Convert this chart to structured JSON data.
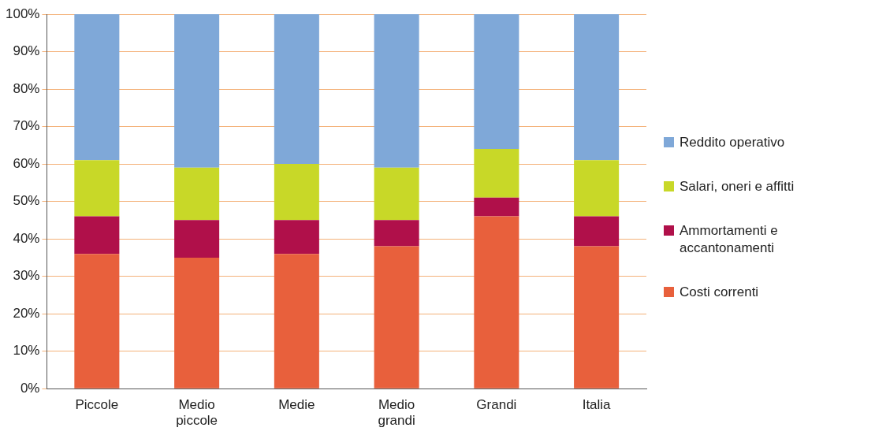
{
  "chart_data": {
    "type": "bar",
    "stacked": true,
    "categories": [
      "Piccole",
      "Medio piccole",
      "Medie",
      "Medio grandi",
      "Grandi",
      "Italia"
    ],
    "series": [
      {
        "name": "Costi correnti",
        "color": "#e8603c",
        "values": [
          36,
          35,
          36,
          38,
          46,
          38
        ]
      },
      {
        "name": "Ammortamenti e accantonamenti",
        "color": "#b0104a",
        "values": [
          10,
          10,
          9,
          7,
          5,
          8
        ]
      },
      {
        "name": "Salari, oneri e affitti",
        "color": "#c8d828",
        "values": [
          15,
          14,
          15,
          14,
          13,
          15
        ]
      },
      {
        "name": "Reddito operativo",
        "color": "#7fa8d8",
        "values": [
          39,
          41,
          40,
          41,
          36,
          39
        ]
      }
    ],
    "ylim": [
      0,
      100
    ],
    "yticks": [
      {
        "value": 0,
        "label": "0%"
      },
      {
        "value": 10,
        "label": "10%"
      },
      {
        "value": 20,
        "label": "20%"
      },
      {
        "value": 30,
        "label": "30%"
      },
      {
        "value": 40,
        "label": "40%"
      },
      {
        "value": 50,
        "label": "50%"
      },
      {
        "value": 60,
        "label": "60%"
      },
      {
        "value": 70,
        "label": "70%"
      },
      {
        "value": 80,
        "label": "80%"
      },
      {
        "value": 90,
        "label": "90%"
      },
      {
        "value": 100,
        "label": "100%"
      }
    ],
    "grid": "y",
    "legend": "right"
  }
}
